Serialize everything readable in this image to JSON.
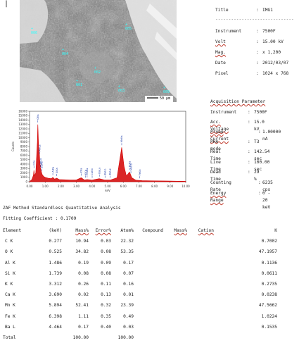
{
  "cursor_mark": "|",
  "image_panel": {
    "scale_bar": "50 µm",
    "labels": [
      "006",
      "005",
      "004",
      "002",
      "001",
      "003",
      "009"
    ]
  },
  "meta": [
    {
      "key": "Title",
      "value": "IMG1"
    },
    {
      "key": "Instrument",
      "value": "7500F"
    },
    {
      "key": "Volt",
      "value": "15.00 kV"
    },
    {
      "key": "Mag.",
      "value": "x 1,200"
    },
    {
      "key": "Date",
      "value": "2012/03/07"
    },
    {
      "key": "Pixel",
      "value": "1024 x 768"
    }
  ],
  "meta_separator": "------------------------------",
  "acquisition": {
    "heading": "Acquisition Parameter",
    "rows": [
      {
        "key": "Instrument",
        "value": "7500F"
      },
      {
        "key": "Acc. Voltage",
        "value": "15.0 kV"
      },
      {
        "key": "Probe Current",
        "value": "1.00000 nA"
      },
      {
        "key": "PHA mode",
        "value": "T3"
      },
      {
        "key": "Real Time",
        "value": "142.54 sec"
      },
      {
        "key": "Live Time",
        "value": "100.00 sec"
      },
      {
        "key": "Dead Time",
        "value": "29 %"
      },
      {
        "key": "Counting Rate",
        "value": "6235 cps"
      },
      {
        "key": "Energy Range",
        "value": "0 - 20 keV"
      }
    ]
  },
  "zaf": {
    "title": "ZAF Method Standardless Quantitative Analysis",
    "fitting": "Fitting Coefficient : 0.1709",
    "headers": [
      "Element",
      "(keV)",
      "Mass%",
      "Error%",
      "Atom%",
      "Compound",
      "Mass%",
      "Cation",
      "K"
    ],
    "rows": [
      [
        "C K",
        "0.277",
        "10.94",
        "0.03",
        "22.32",
        "",
        "",
        "",
        "0.7002"
      ],
      [
        "O K",
        "0.525",
        "34.82",
        "0.08",
        "53.35",
        "",
        "",
        "",
        "47.1957"
      ],
      [
        "Al K",
        "1.486",
        "0.19",
        "0.09",
        "0.17",
        "",
        "",
        "",
        "0.1136"
      ],
      [
        "Si K",
        "1.739",
        "0.08",
        "0.08",
        "0.07",
        "",
        "",
        "",
        "0.0611"
      ],
      [
        "K K",
        "3.312",
        "0.26",
        "0.11",
        "0.16",
        "",
        "",
        "",
        "0.2735"
      ],
      [
        "Ca K",
        "3.690",
        "0.02",
        "0.13",
        "0.01",
        "",
        "",
        "",
        "0.0238"
      ],
      [
        "Mn K",
        "5.894",
        "52.41",
        "0.32",
        "23.39",
        "",
        "",
        "",
        "47.5662"
      ],
      [
        "Fe K",
        "6.398",
        "1.11",
        "0.35",
        "0.49",
        "",
        "",
        "",
        "1.0224"
      ],
      [
        "Ba L",
        "4.464",
        "0.17",
        "0.40",
        "0.03",
        "",
        "",
        "",
        "0.1535"
      ]
    ],
    "total": [
      "Total",
      "",
      "100.00",
      "",
      "100.00",
      "",
      "",
      "",
      ""
    ]
  },
  "chart_data": {
    "type": "line",
    "title": "",
    "xlabel": "keV",
    "ylabel": "Counts",
    "xlim": [
      0,
      10
    ],
    "ylim": [
      0,
      16000
    ],
    "x_ticks": [
      "0.00",
      "1.00",
      "2.00",
      "3.00",
      "4.00",
      "5.00",
      "6.00",
      "7.00",
      "8.00",
      "9.00",
      "10.00"
    ],
    "y_ticks": [
      "0",
      "1000",
      "2000",
      "3000",
      "4000",
      "5000",
      "6000",
      "7000",
      "8000",
      "9000",
      "10000",
      "11000",
      "12000",
      "13000",
      "14000",
      "15000",
      "16000"
    ],
    "colors": {
      "spectrum": "#d40000",
      "labels": "#1a3aa8"
    },
    "series": [
      {
        "x": [
          0.0,
          0.15,
          0.25,
          0.28,
          0.32,
          0.4,
          0.5,
          0.53,
          0.58,
          0.62,
          0.66,
          0.7,
          0.8,
          0.9,
          1.0,
          1.2,
          1.4,
          1.49,
          1.6,
          1.74,
          1.9,
          2.2,
          2.6,
          3.0,
          3.31,
          3.5,
          3.69,
          4.0,
          4.46,
          4.8,
          5.2,
          5.6,
          5.9,
          6.05,
          6.2,
          6.4,
          6.55,
          6.8,
          7.2,
          8.0,
          9.0,
          10.0
        ],
        "y": [
          0,
          500,
          1500,
          2600,
          1400,
          2000,
          9000,
          13000,
          8000,
          7000,
          4500,
          3000,
          1700,
          1200,
          1000,
          800,
          700,
          1000,
          600,
          800,
          500,
          450,
          400,
          420,
          900,
          420,
          500,
          380,
          700,
          400,
          420,
          900,
          7800,
          3500,
          1300,
          2200,
          900,
          350,
          250,
          200,
          150,
          100
        ]
      }
    ],
    "peak_labels": [
      {
        "x": 0.28,
        "label": "CKa"
      },
      {
        "x": 0.53,
        "label": "OKa"
      },
      {
        "x": 0.64,
        "label": "MnLa"
      },
      {
        "x": 0.71,
        "label": "FeLa"
      },
      {
        "x": 0.78,
        "label": "BaMz"
      },
      {
        "x": 1.49,
        "label": "AlKa"
      },
      {
        "x": 1.74,
        "label": "SiKa"
      },
      {
        "x": 3.31,
        "label": "KKa"
      },
      {
        "x": 3.59,
        "label": "KKb"
      },
      {
        "x": 3.69,
        "label": "CaKa"
      },
      {
        "x": 4.01,
        "label": "CaKb"
      },
      {
        "x": 4.47,
        "label": "BaLa"
      },
      {
        "x": 4.83,
        "label": "BaLb"
      },
      {
        "x": 5.16,
        "label": "BaLg"
      },
      {
        "x": 5.9,
        "label": "MnKa"
      },
      {
        "x": 6.4,
        "label": "FeKa"
      },
      {
        "x": 6.49,
        "label": "MnKb"
      },
      {
        "x": 7.06,
        "label": "FeKb"
      }
    ]
  }
}
